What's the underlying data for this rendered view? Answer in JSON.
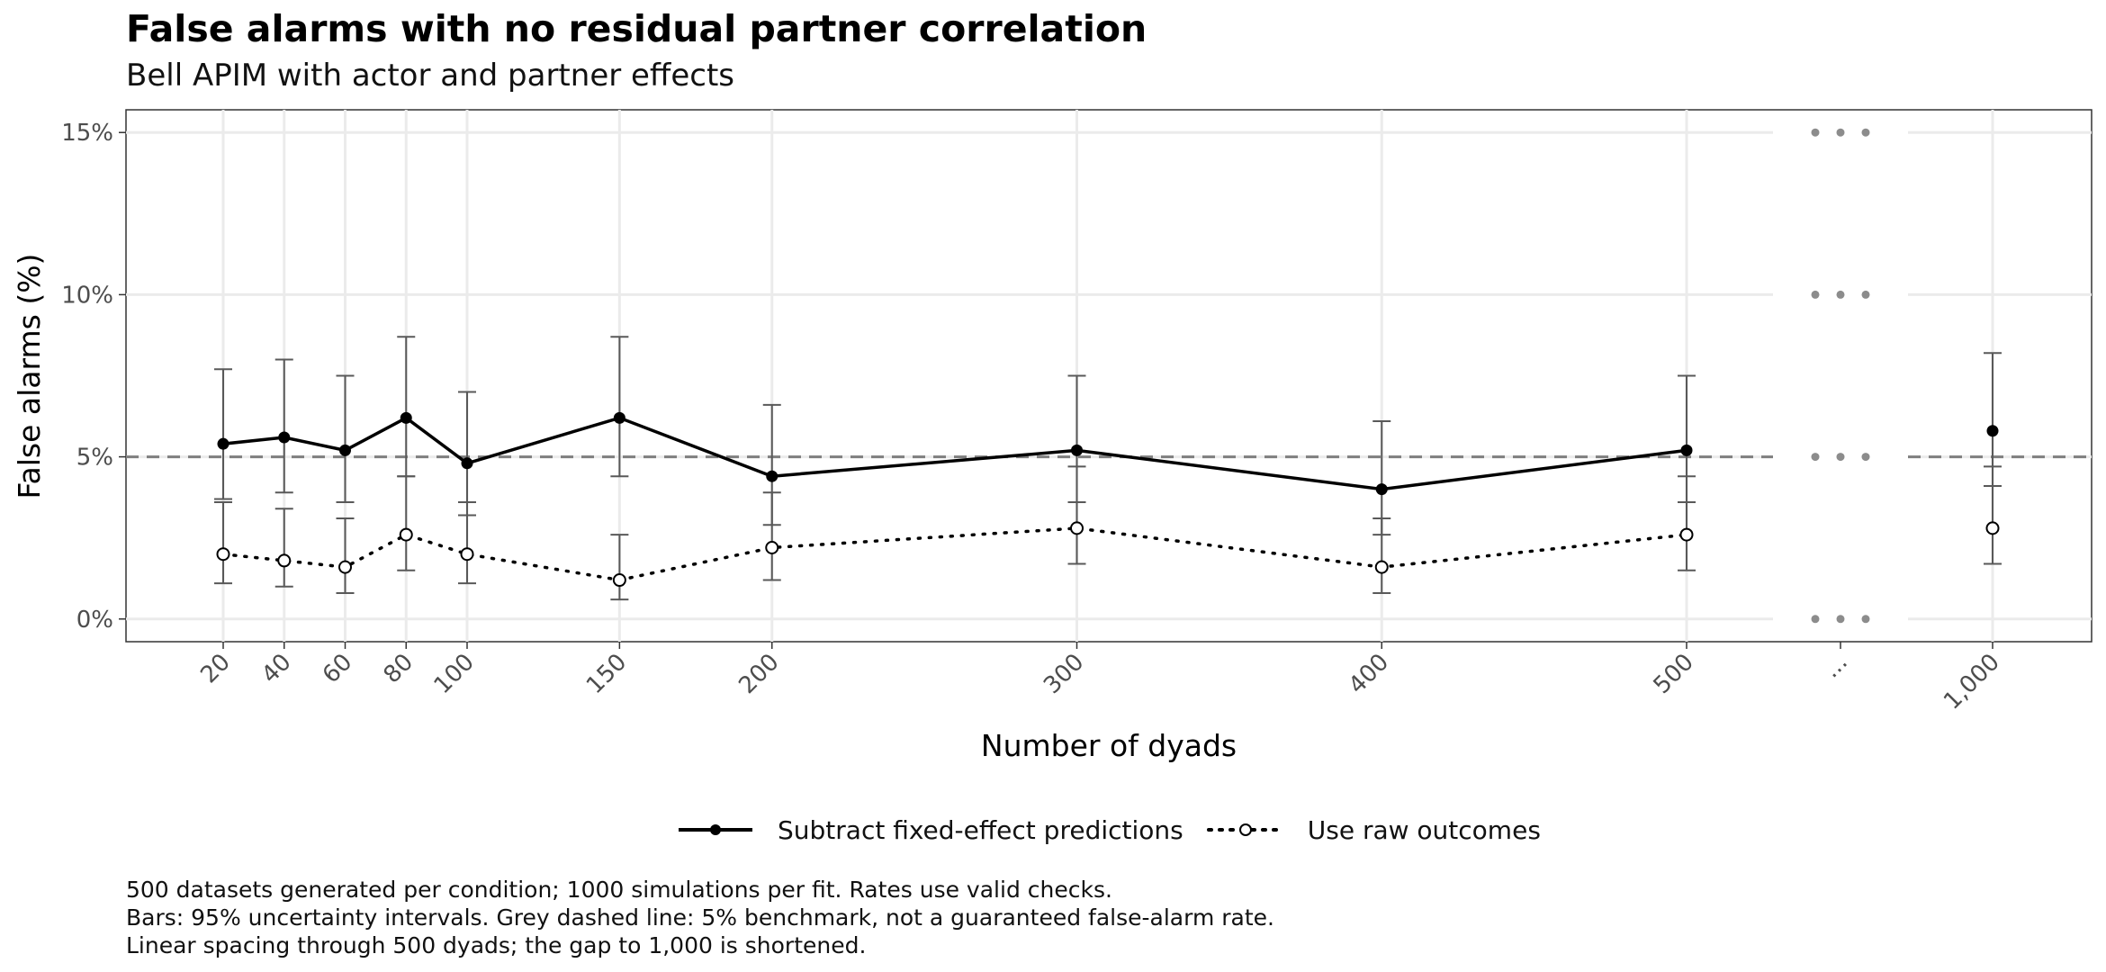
{
  "chart_data": {
    "type": "line",
    "title": "False alarms with no residual partner correlation",
    "subtitle": "Bell APIM with actor and partner effects",
    "xlabel": "Number of dyads",
    "ylabel": "False alarms (%)",
    "x_ticks": [
      "20",
      "40",
      "60",
      "80",
      "100",
      "150",
      "200",
      "300",
      "400",
      "500",
      "...",
      "1,000"
    ],
    "y_ticks": [
      "0%",
      "5%",
      "10%",
      "15%"
    ],
    "ylim": [
      -0.7,
      15.7
    ],
    "benchmark": 5,
    "grid": true,
    "legend_position": "bottom",
    "x": [
      20,
      40,
      60,
      80,
      100,
      150,
      200,
      300,
      400,
      500,
      1000
    ],
    "series": [
      {
        "name": "Subtract fixed-effect predictions",
        "style": "solid",
        "values": [
          5.4,
          5.6,
          5.2,
          6.2,
          4.8,
          6.2,
          4.4,
          5.2,
          4.0,
          5.2,
          5.8
        ],
        "lower": [
          3.7,
          3.9,
          3.6,
          4.4,
          3.2,
          4.4,
          2.9,
          3.6,
          2.6,
          3.6,
          4.1
        ],
        "upper": [
          7.7,
          8.0,
          7.5,
          8.7,
          7.0,
          8.7,
          6.6,
          7.5,
          6.1,
          7.5,
          8.2
        ]
      },
      {
        "name": "Use raw outcomes",
        "style": "dotted",
        "values": [
          2.0,
          1.8,
          1.6,
          2.6,
          2.0,
          1.2,
          2.2,
          2.8,
          1.6,
          2.6,
          2.8
        ],
        "lower": [
          1.1,
          1.0,
          0.8,
          1.5,
          1.1,
          0.6,
          1.2,
          1.7,
          0.8,
          1.5,
          1.7
        ],
        "upper": [
          3.6,
          3.4,
          3.1,
          4.4,
          3.6,
          2.6,
          3.9,
          4.7,
          3.1,
          4.4,
          4.7
        ]
      }
    ],
    "caption": [
      "500 datasets generated per condition; 1000 simulations per fit. Rates use valid checks.",
      "Bars: 95% uncertainty intervals. Grey dashed line: 5% benchmark, not a guaranteed false-alarm rate.",
      "Linear spacing through 500 dyads; the gap to 1,000 is shortened."
    ]
  },
  "colors": {
    "line": "#000000",
    "errorbar": "#595959",
    "benchmark": "#7f7f7f",
    "grid": "#ebebeb",
    "axis_text": "#4d4d4d",
    "gap_dots": "#8c8c8c"
  }
}
